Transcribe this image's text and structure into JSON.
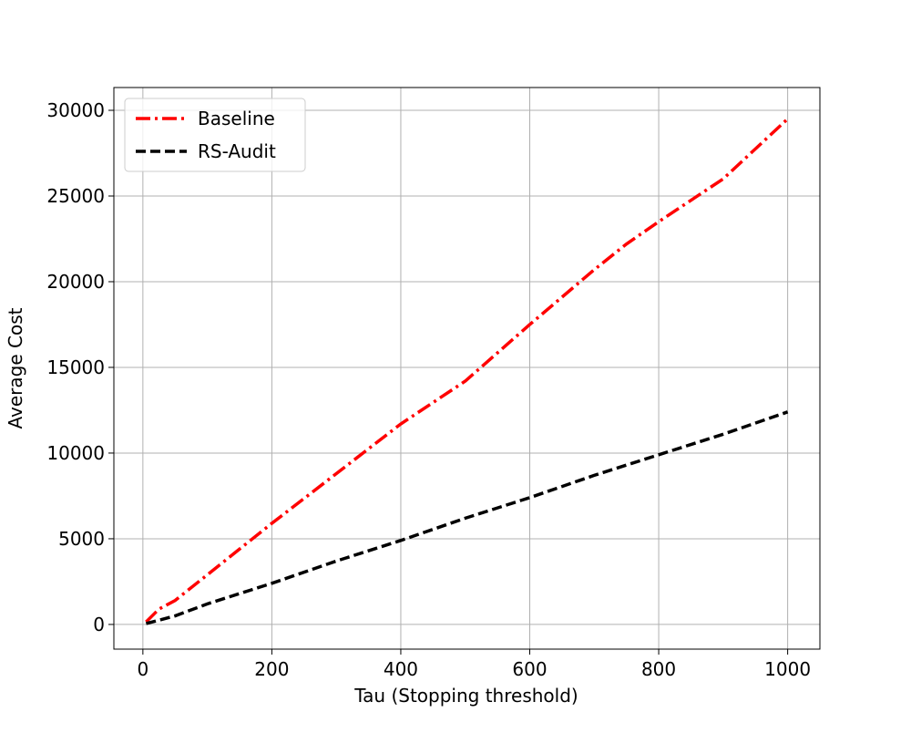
{
  "chart_data": {
    "type": "line",
    "xlabel": "Tau (Stopping threshold)",
    "ylabel": "Average Cost",
    "x": [
      5,
      25,
      50,
      100,
      200,
      300,
      400,
      500,
      600,
      700,
      750,
      800,
      900,
      1000
    ],
    "series": [
      {
        "name": "Baseline",
        "color": "#ff0000",
        "linestyle": "dashdot",
        "values": [
          150,
          900,
          1400,
          2900,
          5900,
          8800,
          11700,
          14200,
          17500,
          20700,
          22200,
          23500,
          26000,
          29500
        ]
      },
      {
        "name": "RS-Audit",
        "color": "#000000",
        "linestyle": "dashed",
        "values": [
          50,
          250,
          500,
          1200,
          2400,
          3700,
          4900,
          6200,
          7400,
          8700,
          9300,
          9900,
          11100,
          12400
        ]
      }
    ],
    "xlim": [
      -45,
      1050
    ],
    "ylim": [
      -1440,
      31330
    ],
    "xticks": [
      0,
      200,
      400,
      600,
      800,
      1000
    ],
    "yticks": [
      0,
      5000,
      10000,
      15000,
      20000,
      25000,
      30000
    ],
    "grid": true,
    "legend": "upper left"
  }
}
